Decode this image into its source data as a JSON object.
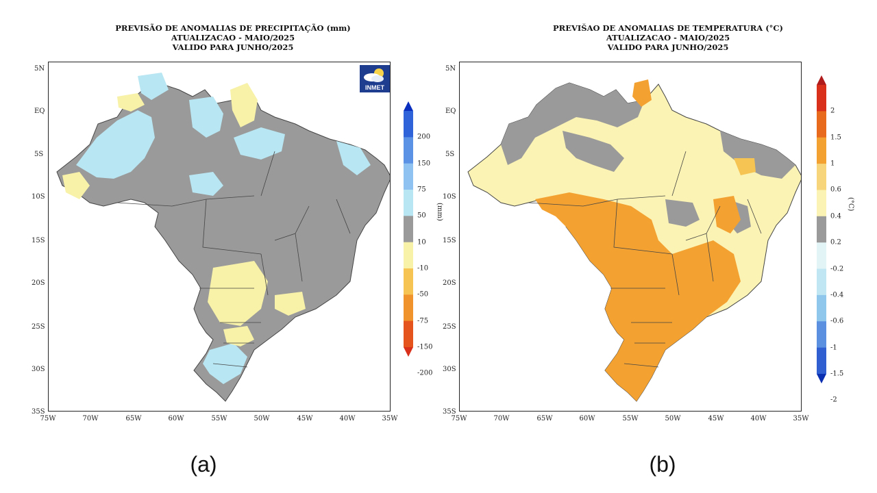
{
  "panels": [
    {
      "title_line1": "PREVISÃO DE ANOMALIAS DE PRECIPITAÇÃO (mm)",
      "title_line2": "ATUALIZACAO - MAIO/2025",
      "title_line3": "VALIDO PARA JUNHO/2025",
      "caption": "(a)",
      "unit": "(mm)",
      "colorbar_labels": [
        "200",
        "150",
        "75",
        "50",
        "10",
        "-10",
        "-50",
        "-75",
        "-150",
        "-200"
      ],
      "colorbar_colors": [
        "#0a2fbf",
        "#2f63d9",
        "#5b92e6",
        "#8fc2f0",
        "#b8e6f2",
        "#9a9a9a",
        "#f7f2a8",
        "#f5c453",
        "#f0932d",
        "#e5541c",
        "#d8301a"
      ],
      "logo_text": "INMET"
    },
    {
      "title_line1": "PREVIŠAO DE ANOMALIAS DE TEMPERATURA (°C)",
      "title_line2": "ATUALIZACAO - MAIO/2025",
      "title_line3": "VALIDO PARA JUNHO/2025",
      "caption": "(b)",
      "unit": "(°C)",
      "colorbar_labels": [
        "2",
        "1.5",
        "1",
        "0.6",
        "0.4",
        "0.2",
        "-0.2",
        "-0.4",
        "-0.6",
        "-1",
        "-1.5",
        "-2"
      ],
      "colorbar_colors": [
        "#b01c1c",
        "#d8301a",
        "#e86a1c",
        "#f3a232",
        "#f7d57a",
        "#fbf3b3",
        "#9a9a9a",
        "#e3f4f7",
        "#bfe6f2",
        "#8ec6ec",
        "#5b8fe0",
        "#2f5fd0",
        "#0a2fb0"
      ]
    }
  ],
  "axes": {
    "y_labels": [
      "5N",
      "EQ",
      "5S",
      "10S",
      "15S",
      "20S",
      "25S",
      "30S",
      "35S"
    ],
    "x_labels": [
      "75W",
      "70W",
      "65W",
      "60W",
      "55W",
      "50W",
      "45W",
      "40W",
      "35W"
    ]
  },
  "map_colors": {
    "gray": "#9a9a9a",
    "light_blue": "#b8e6f2",
    "light_yellow": "#f7f2a8",
    "orange": "#f3a232",
    "light_orange": "#f5c453"
  }
}
